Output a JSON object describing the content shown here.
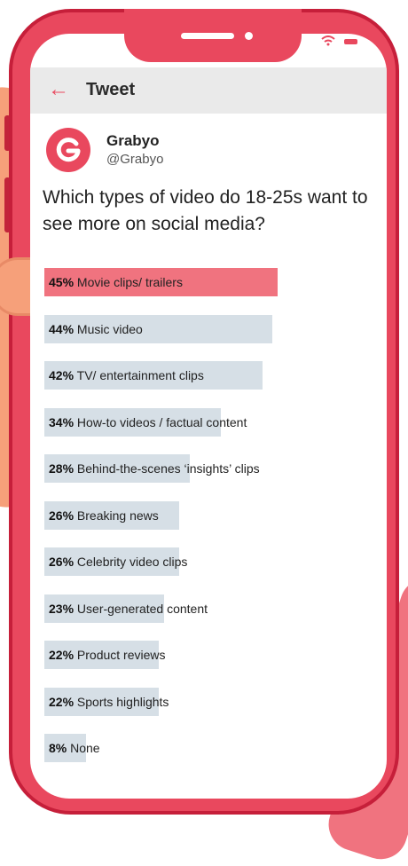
{
  "header": {
    "title": "Tweet"
  },
  "account": {
    "name": "Grabyo",
    "handle": "@Grabyo"
  },
  "tweet": {
    "question": "Which types of video do 18-25s want to see more on social media?"
  },
  "colors": {
    "phone": "#e9485e",
    "top_bar": "#f0737f",
    "bar": "#d6dfe6"
  },
  "icons": {
    "back": "arrow-left-icon",
    "avatar": "grabyo-logo-icon",
    "wifi": "wifi-icon",
    "battery": "battery-icon"
  },
  "chart_data": {
    "type": "bar",
    "orientation": "horizontal",
    "title": "Which types of video do 18-25s want to see more on social media?",
    "unit": "%",
    "xlim": [
      0,
      50
    ],
    "categories": [
      "Movie clips/ trailers",
      "Music video",
      "TV/ entertainment clips",
      "How-to videos / factual content",
      "Behind-the-scenes ‘insights’ clips",
      "Breaking news",
      "Celebrity video clips",
      "User-generated content",
      "Product reviews",
      "Sports highlights",
      "None"
    ],
    "values": [
      45,
      44,
      42,
      34,
      28,
      26,
      26,
      23,
      22,
      22,
      8
    ],
    "labels": [
      "45%",
      "44%",
      "42%",
      "34%",
      "28%",
      "26%",
      "26%",
      "23%",
      "22%",
      "22%",
      "8%"
    ],
    "highlight_index": 0
  }
}
